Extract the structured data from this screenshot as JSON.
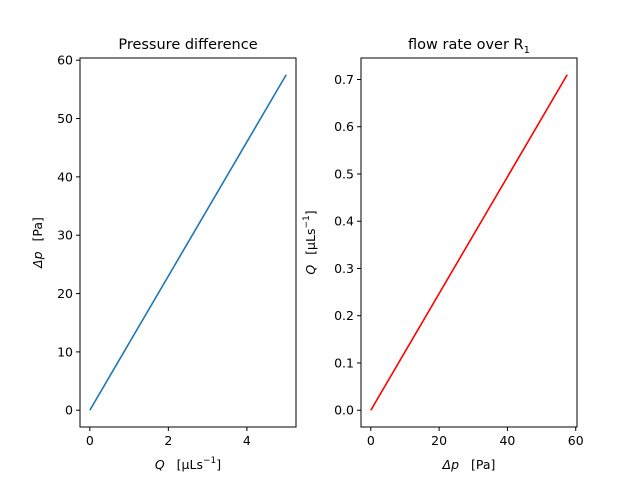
{
  "chart_data": [
    {
      "type": "line",
      "title": "Pressure difference",
      "xlabel": {
        "symbol": "Q",
        "unit": "[µLs",
        "exp": "−1",
        "close": "]"
      },
      "ylabel": {
        "symbol": "Δp",
        "unit": "[Pa]"
      },
      "xlim": [
        -0.25,
        5.25
      ],
      "ylim": [
        -2.875,
        60.375
      ],
      "xticks": [
        0,
        2,
        4
      ],
      "xtick_labels": [
        "0",
        "2",
        "4"
      ],
      "yticks": [
        0,
        10,
        20,
        30,
        40,
        50,
        60
      ],
      "ytick_labels": [
        "0",
        "10",
        "20",
        "30",
        "40",
        "50",
        "60"
      ],
      "grid": false,
      "series": [
        {
          "color": "#1f77b4",
          "x": [
            0,
            5
          ],
          "y": [
            0,
            57.5
          ]
        }
      ]
    },
    {
      "type": "line",
      "title": {
        "text": "flow rate over R",
        "sub": "1"
      },
      "xlabel": {
        "symbol": "Δp",
        "unit": "[Pa]"
      },
      "ylabel": {
        "symbol": "Q",
        "unit": "[µLs",
        "exp": "−1",
        "close": "]"
      },
      "xlim": [
        -2.875,
        60.375
      ],
      "ylim": [
        -0.0355,
        0.7455
      ],
      "xticks": [
        0,
        20,
        40,
        60
      ],
      "xtick_labels": [
        "0",
        "20",
        "40",
        "60"
      ],
      "yticks": [
        0.0,
        0.1,
        0.2,
        0.3,
        0.4,
        0.5,
        0.6,
        0.7
      ],
      "ytick_labels": [
        "0.0",
        "0.1",
        "0.2",
        "0.3",
        "0.4",
        "0.5",
        "0.6",
        "0.7"
      ],
      "grid": false,
      "series": [
        {
          "color": "#ff0000",
          "x": [
            0,
            57.5
          ],
          "y": [
            0,
            0.71
          ]
        }
      ]
    }
  ]
}
